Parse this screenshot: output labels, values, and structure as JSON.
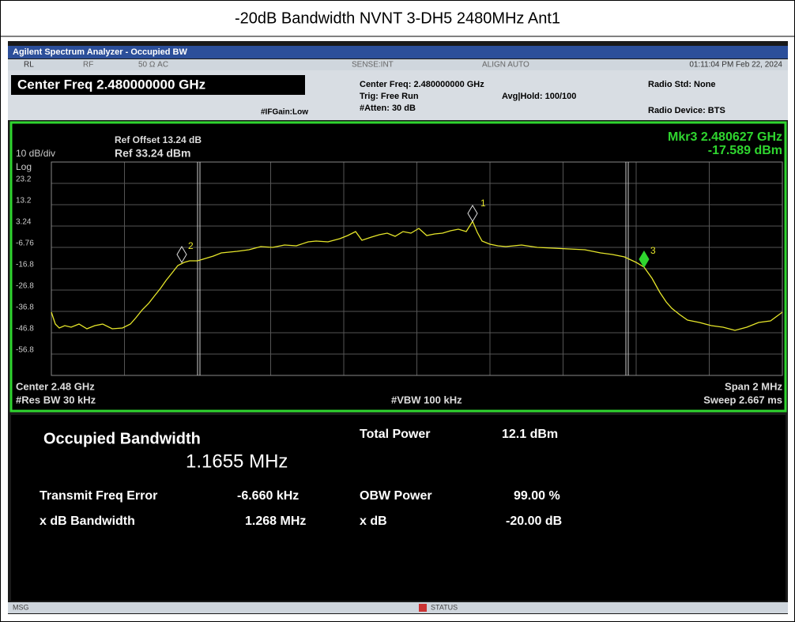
{
  "title": "-20dB Bandwidth NVNT 3-DH5 2480MHz Ant1",
  "window_title": "Agilent Spectrum Analyzer - Occupied BW",
  "status_bar": {
    "rl": "RL",
    "rf": "RF",
    "input": "50 Ω  AC",
    "sense": "SENSE:INT",
    "align": "ALIGN AUTO",
    "datetime": "01:11:04 PM Feb 22, 2024"
  },
  "settings": {
    "center_freq": "Center Freq 2.480000000 GHz",
    "if_gain": "#IFGain:Low",
    "center_freq_info": "Center Freq: 2.480000000 GHz",
    "trig": "Trig: Free Run",
    "atten": "#Atten: 30 dB",
    "avg_hold": "Avg|Hold: 100/100",
    "radio_std": "Radio Std: None",
    "radio_device": "Radio Device: BTS"
  },
  "graph": {
    "ref_offset": "Ref Offset 13.24 dB",
    "ref": "Ref 33.24 dBm",
    "scale": "10 dB/div",
    "log": "Log",
    "marker_freq": "Mkr3  2.480627 GHz",
    "marker_level": "-17.589 dBm",
    "y_labels": [
      "23.2",
      "13.2",
      "3.24",
      "-6.76",
      "-16.8",
      "-26.8",
      "-36.8",
      "-46.8",
      "-56.8"
    ],
    "markers": [
      "1",
      "2",
      "3"
    ],
    "center": "Center  2.48 GHz",
    "res_bw": "#Res BW  30 kHz",
    "vbw": "#VBW  100 kHz",
    "span": "Span 2 MHz",
    "sweep": "Sweep  2.667 ms"
  },
  "results": {
    "occupied_bandwidth_label": "Occupied Bandwidth",
    "occupied_bandwidth": "1.1655 MHz",
    "total_power_label": "Total Power",
    "total_power": "12.1 dBm",
    "freq_error_label": "Transmit Freq Error",
    "freq_error": "-6.660 kHz",
    "obw_power_label": "OBW Power",
    "obw_power": "99.00 %",
    "xdb_bw_label": "x dB Bandwidth",
    "xdb_bw": "1.268 MHz",
    "xdb_label": "x dB",
    "xdb": "-20.00 dB"
  },
  "footer": {
    "msg": "MSG",
    "status": "STATUS"
  }
}
